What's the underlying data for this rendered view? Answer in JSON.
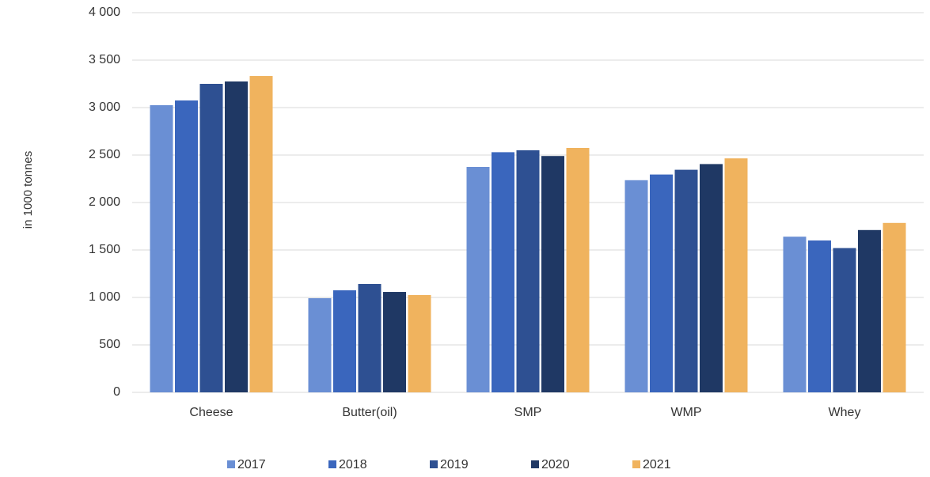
{
  "chart_data": {
    "type": "bar",
    "ylabel": "in 1000 tonnes",
    "categories": [
      "Cheese",
      "Butter(oil)",
      "SMP",
      "WMP",
      "Whey"
    ],
    "series": [
      {
        "name": "2017",
        "color": "#6a8fd4",
        "values": [
          3025,
          992,
          2375,
          2235,
          1640
        ]
      },
      {
        "name": "2018",
        "color": "#3a66bd",
        "values": [
          3075,
          1075,
          2530,
          2295,
          1600
        ]
      },
      {
        "name": "2019",
        "color": "#2e5092",
        "values": [
          3250,
          1142,
          2550,
          2345,
          1520
        ]
      },
      {
        "name": "2020",
        "color": "#1f3864",
        "values": [
          3275,
          1058,
          2490,
          2405,
          1710
        ]
      },
      {
        "name": "2021",
        "color": "#f0b35e",
        "values": [
          3333,
          1025,
          2575,
          2465,
          1785
        ]
      }
    ],
    "ylim": [
      0,
      4000
    ],
    "yticks": [
      0,
      500,
      {
        "value": 1000,
        "label": "1 000"
      },
      {
        "value": 1500,
        "label": "1 500"
      },
      {
        "value": 2000,
        "label": "2 000"
      },
      {
        "value": 2500,
        "label": "2 500"
      },
      {
        "value": 3000,
        "label": "3 000"
      },
      {
        "value": 3500,
        "label": "3 500"
      },
      {
        "value": 4000,
        "label": "4 000"
      }
    ],
    "grid": true,
    "legend": "bottom"
  }
}
